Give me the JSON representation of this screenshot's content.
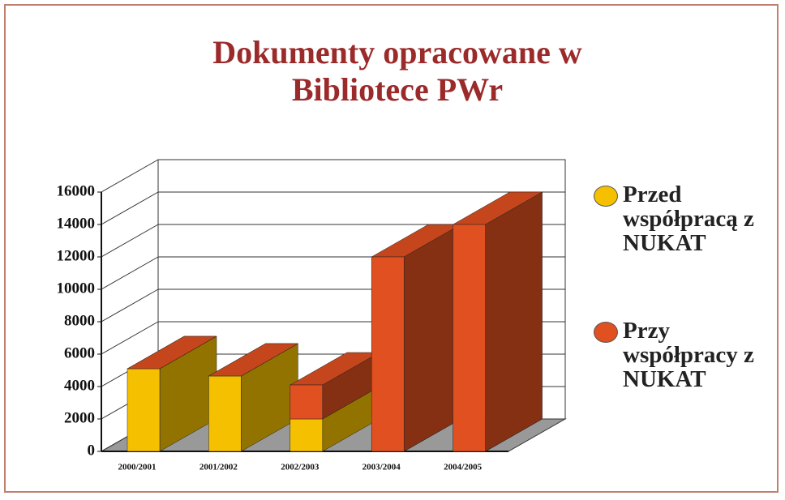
{
  "chart_data": {
    "type": "bar3d-stacked",
    "title": "Dokumenty opracowane w Bibliotece PWr",
    "categories": [
      "2000/2001",
      "2001/2002",
      "2002/2003",
      "2003/2004",
      "2004/2005"
    ],
    "series": [
      {
        "name": "Przed współpracą z NUKAT",
        "color": "#f5c000",
        "values": [
          5100,
          4650,
          2000,
          0,
          0
        ]
      },
      {
        "name": "Przy współpracy z NUKAT",
        "color": "#e05020",
        "values": [
          0,
          0,
          2100,
          12000,
          14000
        ]
      }
    ],
    "ylim": [
      0,
      16000
    ],
    "yticks": [
      0,
      2000,
      4000,
      6000,
      8000,
      10000,
      12000,
      14000,
      16000
    ],
    "grid": true,
    "legend": "right"
  }
}
